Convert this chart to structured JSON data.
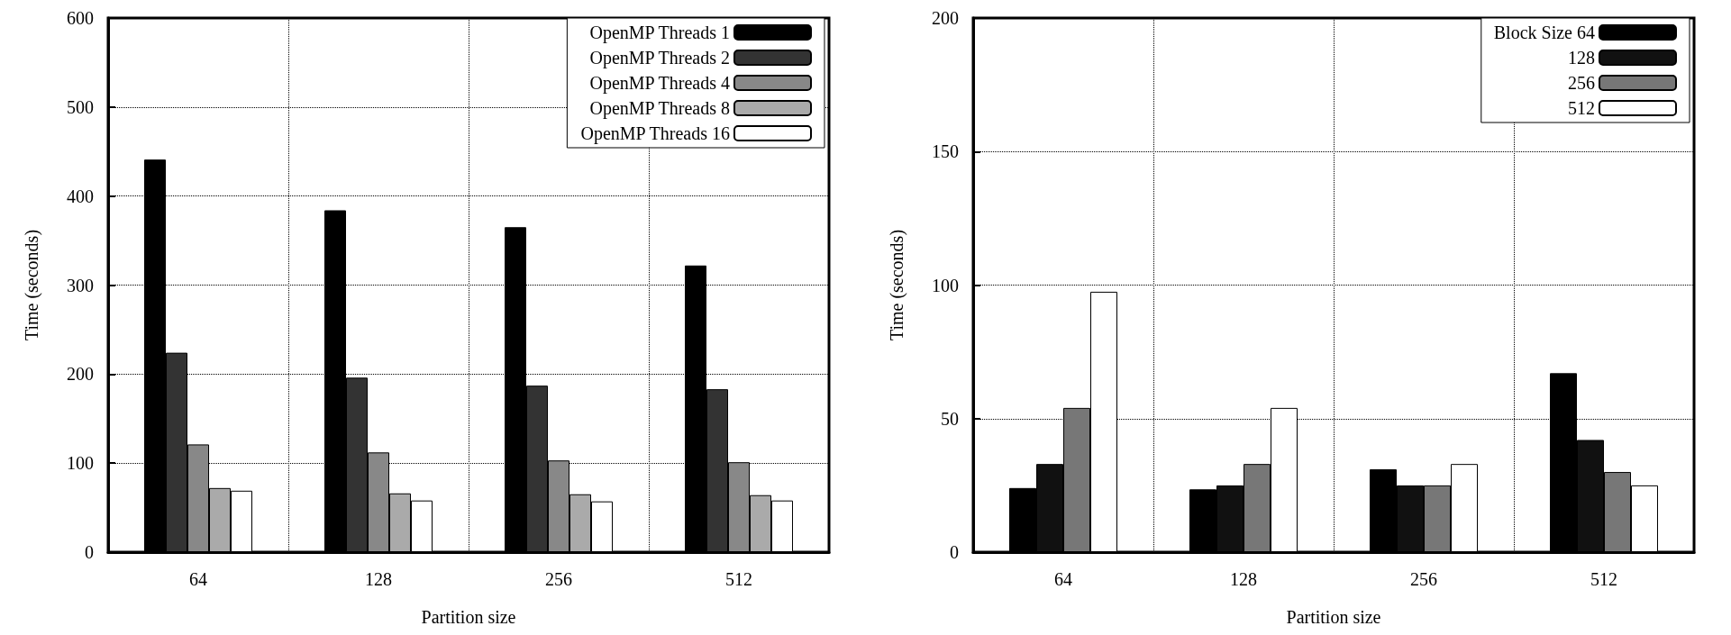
{
  "chart_data": [
    {
      "type": "bar",
      "xlabel": "Partition size",
      "ylabel": "Time (seconds)",
      "categories": [
        "64",
        "128",
        "256",
        "512"
      ],
      "series": [
        {
          "name": "OpenMP Threads 1",
          "color": "#000000",
          "values": [
            441,
            384,
            365,
            322
          ]
        },
        {
          "name": "OpenMP Threads 2",
          "color": "#333333",
          "values": [
            224,
            196,
            187,
            183
          ]
        },
        {
          "name": "OpenMP Threads 4",
          "color": "#888888",
          "values": [
            121,
            112,
            103,
            101
          ]
        },
        {
          "name": "OpenMP Threads 8",
          "color": "#aaaaaa",
          "values": [
            72,
            66,
            65,
            64
          ]
        },
        {
          "name": "OpenMP Threads 16",
          "color": "#ffffff",
          "values": [
            69,
            58,
            57,
            58
          ]
        }
      ],
      "ylim": [
        0,
        600
      ],
      "yticks": [
        0,
        100,
        200,
        300,
        400,
        500,
        600
      ],
      "grid": true,
      "legend": "top right"
    },
    {
      "type": "bar",
      "xlabel": "Partition size",
      "ylabel": "Time (seconds)",
      "categories": [
        "64",
        "128",
        "256",
        "512"
      ],
      "series": [
        {
          "name": "Block Size 64",
          "color": "#000000",
          "values": [
            24,
            23.5,
            31,
            67
          ]
        },
        {
          "name": "128",
          "color": "#111111",
          "values": [
            33,
            25,
            25,
            42
          ]
        },
        {
          "name": "256",
          "color": "#777777",
          "values": [
            54,
            33,
            25,
            30
          ]
        },
        {
          "name": "512",
          "color": "#ffffff",
          "values": [
            97.5,
            54,
            33,
            25
          ]
        }
      ],
      "ylim": [
        0,
        200
      ],
      "yticks": [
        0,
        50,
        100,
        150,
        200
      ],
      "grid": true,
      "legend": "top right"
    }
  ]
}
